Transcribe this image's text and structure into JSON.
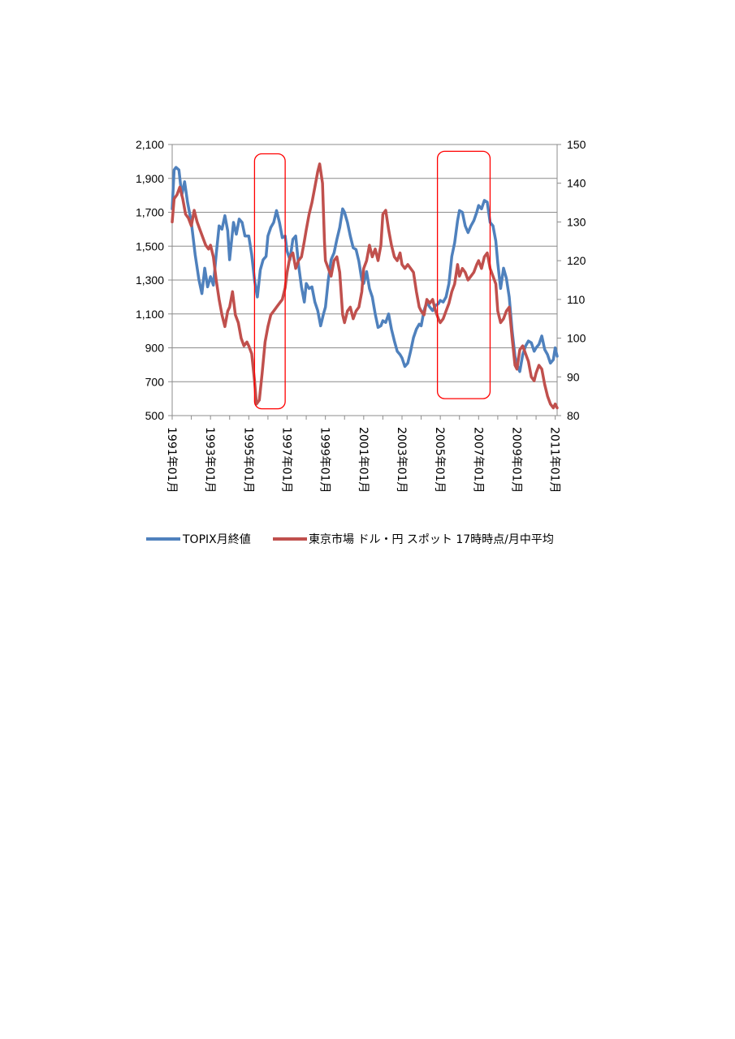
{
  "chart_data": {
    "type": "line",
    "title": "",
    "xlabel": "",
    "x_tick_labels": [
      "1991年01月",
      "1993年01月",
      "1995年01月",
      "1997年01月",
      "1999年01月",
      "2001年01月",
      "2003年01月",
      "2005年01月",
      "2007年01月",
      "2009年01月",
      "2011年01月"
    ],
    "x_range": [
      1991.0,
      2011.1
    ],
    "y_left": {
      "range": [
        500,
        2100
      ],
      "ticks": [
        500,
        700,
        900,
        1100,
        1300,
        1500,
        1700,
        1900,
        2100
      ],
      "tick_labels": [
        "500",
        "700",
        "900",
        "1,100",
        "1,300",
        "1,500",
        "1,700",
        "1,900",
        "2,100"
      ]
    },
    "y_right": {
      "range": [
        80,
        150
      ],
      "ticks": [
        80,
        90,
        100,
        110,
        120,
        130,
        140,
        150
      ],
      "tick_labels": [
        "80",
        "90",
        "100",
        "110",
        "120",
        "130",
        "140",
        "150"
      ]
    },
    "grid": "horizontal",
    "legend_position": "bottom",
    "series": [
      {
        "name": "TOPIX月終値",
        "axis": "left",
        "color": "#4f81bd",
        "points": [
          [
            1991.0,
            1720
          ],
          [
            1991.1,
            1950
          ],
          [
            1991.2,
            1965
          ],
          [
            1991.35,
            1950
          ],
          [
            1991.5,
            1800
          ],
          [
            1991.65,
            1880
          ],
          [
            1991.8,
            1760
          ],
          [
            1992.0,
            1640
          ],
          [
            1992.2,
            1450
          ],
          [
            1992.4,
            1300
          ],
          [
            1992.55,
            1220
          ],
          [
            1992.7,
            1370
          ],
          [
            1992.85,
            1260
          ],
          [
            1993.0,
            1320
          ],
          [
            1993.15,
            1270
          ],
          [
            1993.3,
            1450
          ],
          [
            1993.45,
            1620
          ],
          [
            1993.6,
            1600
          ],
          [
            1993.75,
            1680
          ],
          [
            1993.9,
            1590
          ],
          [
            1994.0,
            1420
          ],
          [
            1994.2,
            1640
          ],
          [
            1994.35,
            1570
          ],
          [
            1994.5,
            1660
          ],
          [
            1994.65,
            1640
          ],
          [
            1994.8,
            1560
          ],
          [
            1995.0,
            1560
          ],
          [
            1995.15,
            1450
          ],
          [
            1995.3,
            1300
          ],
          [
            1995.45,
            1200
          ],
          [
            1995.6,
            1360
          ],
          [
            1995.75,
            1420
          ],
          [
            1995.9,
            1440
          ],
          [
            1996.0,
            1560
          ],
          [
            1996.15,
            1610
          ],
          [
            1996.3,
            1640
          ],
          [
            1996.45,
            1710
          ],
          [
            1996.6,
            1640
          ],
          [
            1996.75,
            1550
          ],
          [
            1996.9,
            1560
          ],
          [
            1997.0,
            1470
          ],
          [
            1997.15,
            1420
          ],
          [
            1997.3,
            1540
          ],
          [
            1997.45,
            1560
          ],
          [
            1997.6,
            1390
          ],
          [
            1997.75,
            1260
          ],
          [
            1997.9,
            1170
          ],
          [
            1998.0,
            1280
          ],
          [
            1998.15,
            1250
          ],
          [
            1998.3,
            1260
          ],
          [
            1998.45,
            1170
          ],
          [
            1998.6,
            1120
          ],
          [
            1998.75,
            1030
          ],
          [
            1998.9,
            1100
          ],
          [
            1999.0,
            1140
          ],
          [
            1999.15,
            1300
          ],
          [
            1999.3,
            1420
          ],
          [
            1999.45,
            1460
          ],
          [
            1999.6,
            1540
          ],
          [
            1999.75,
            1610
          ],
          [
            1999.9,
            1720
          ],
          [
            2000.0,
            1700
          ],
          [
            2000.15,
            1640
          ],
          [
            2000.3,
            1560
          ],
          [
            2000.45,
            1490
          ],
          [
            2000.6,
            1480
          ],
          [
            2000.75,
            1410
          ],
          [
            2000.9,
            1300
          ],
          [
            2001.0,
            1280
          ],
          [
            2001.15,
            1350
          ],
          [
            2001.3,
            1250
          ],
          [
            2001.45,
            1200
          ],
          [
            2001.6,
            1100
          ],
          [
            2001.75,
            1020
          ],
          [
            2001.9,
            1030
          ],
          [
            2002.0,
            1060
          ],
          [
            2002.15,
            1050
          ],
          [
            2002.3,
            1100
          ],
          [
            2002.45,
            1010
          ],
          [
            2002.6,
            940
          ],
          [
            2002.75,
            880
          ],
          [
            2002.9,
            860
          ],
          [
            2003.0,
            840
          ],
          [
            2003.15,
            790
          ],
          [
            2003.3,
            810
          ],
          [
            2003.45,
            880
          ],
          [
            2003.6,
            960
          ],
          [
            2003.75,
            1010
          ],
          [
            2003.9,
            1040
          ],
          [
            2004.0,
            1030
          ],
          [
            2004.15,
            1120
          ],
          [
            2004.3,
            1170
          ],
          [
            2004.45,
            1140
          ],
          [
            2004.6,
            1120
          ],
          [
            2004.75,
            1150
          ],
          [
            2004.9,
            1160
          ],
          [
            2005.0,
            1180
          ],
          [
            2005.15,
            1170
          ],
          [
            2005.3,
            1200
          ],
          [
            2005.45,
            1280
          ],
          [
            2005.6,
            1440
          ],
          [
            2005.75,
            1520
          ],
          [
            2005.9,
            1650
          ],
          [
            2006.0,
            1710
          ],
          [
            2006.15,
            1700
          ],
          [
            2006.3,
            1620
          ],
          [
            2006.45,
            1580
          ],
          [
            2006.6,
            1620
          ],
          [
            2006.75,
            1650
          ],
          [
            2006.9,
            1700
          ],
          [
            2007.0,
            1740
          ],
          [
            2007.15,
            1720
          ],
          [
            2007.3,
            1770
          ],
          [
            2007.45,
            1760
          ],
          [
            2007.6,
            1640
          ],
          [
            2007.75,
            1620
          ],
          [
            2007.9,
            1530
          ],
          [
            2008.0,
            1400
          ],
          [
            2008.15,
            1250
          ],
          [
            2008.3,
            1370
          ],
          [
            2008.45,
            1310
          ],
          [
            2008.6,
            1200
          ],
          [
            2008.75,
            1000
          ],
          [
            2008.9,
            850
          ],
          [
            2009.0,
            800
          ],
          [
            2009.15,
            760
          ],
          [
            2009.3,
            860
          ],
          [
            2009.45,
            910
          ],
          [
            2009.6,
            940
          ],
          [
            2009.75,
            930
          ],
          [
            2009.9,
            880
          ],
          [
            2010.0,
            900
          ],
          [
            2010.15,
            920
          ],
          [
            2010.3,
            970
          ],
          [
            2010.45,
            890
          ],
          [
            2010.6,
            860
          ],
          [
            2010.75,
            810
          ],
          [
            2010.9,
            830
          ],
          [
            2011.0,
            900
          ],
          [
            2011.1,
            850
          ]
        ]
      },
      {
        "name": "東京市場 ドル・円 スポット 17時時点/月中平均",
        "axis": "right",
        "color": "#c0504d",
        "points": [
          [
            1991.0,
            130
          ],
          [
            1991.1,
            136
          ],
          [
            1991.25,
            137
          ],
          [
            1991.4,
            139
          ],
          [
            1991.55,
            136
          ],
          [
            1991.7,
            132
          ],
          [
            1991.85,
            131
          ],
          [
            1992.0,
            129
          ],
          [
            1992.15,
            133
          ],
          [
            1992.3,
            130
          ],
          [
            1992.45,
            128
          ],
          [
            1992.6,
            126
          ],
          [
            1992.75,
            124
          ],
          [
            1992.9,
            123
          ],
          [
            1993.0,
            124
          ],
          [
            1993.15,
            121
          ],
          [
            1993.3,
            115
          ],
          [
            1993.45,
            110
          ],
          [
            1993.6,
            106
          ],
          [
            1993.75,
            103
          ],
          [
            1993.9,
            107
          ],
          [
            1994.0,
            108
          ],
          [
            1994.15,
            112
          ],
          [
            1994.3,
            106
          ],
          [
            1994.45,
            104
          ],
          [
            1994.6,
            100
          ],
          [
            1994.75,
            98
          ],
          [
            1994.9,
            99
          ],
          [
            1995.0,
            98
          ],
          [
            1995.15,
            96
          ],
          [
            1995.3,
            89
          ],
          [
            1995.4,
            83
          ],
          [
            1995.55,
            84
          ],
          [
            1995.7,
            91
          ],
          [
            1995.85,
            99
          ],
          [
            1996.0,
            103
          ],
          [
            1996.15,
            106
          ],
          [
            1996.3,
            107
          ],
          [
            1996.45,
            108
          ],
          [
            1996.6,
            109
          ],
          [
            1996.75,
            110
          ],
          [
            1996.9,
            113
          ],
          [
            1997.0,
            117
          ],
          [
            1997.15,
            121
          ],
          [
            1997.3,
            122
          ],
          [
            1997.45,
            118
          ],
          [
            1997.6,
            120
          ],
          [
            1997.75,
            121
          ],
          [
            1997.9,
            125
          ],
          [
            1998.0,
            128
          ],
          [
            1998.15,
            132
          ],
          [
            1998.3,
            135
          ],
          [
            1998.45,
            139
          ],
          [
            1998.6,
            143
          ],
          [
            1998.7,
            145
          ],
          [
            1998.85,
            140
          ],
          [
            1998.95,
            125
          ],
          [
            1999.0,
            120
          ],
          [
            1999.15,
            118
          ],
          [
            1999.3,
            116
          ],
          [
            1999.45,
            120
          ],
          [
            1999.6,
            121
          ],
          [
            1999.75,
            117
          ],
          [
            1999.9,
            106
          ],
          [
            2000.0,
            104
          ],
          [
            2000.15,
            107
          ],
          [
            2000.3,
            108
          ],
          [
            2000.45,
            105
          ],
          [
            2000.6,
            107
          ],
          [
            2000.75,
            108
          ],
          [
            2000.9,
            112
          ],
          [
            2001.0,
            118
          ],
          [
            2001.15,
            120
          ],
          [
            2001.3,
            124
          ],
          [
            2001.45,
            121
          ],
          [
            2001.6,
            123
          ],
          [
            2001.75,
            120
          ],
          [
            2001.9,
            124
          ],
          [
            2002.0,
            132
          ],
          [
            2002.15,
            133
          ],
          [
            2002.3,
            128
          ],
          [
            2002.45,
            124
          ],
          [
            2002.6,
            121
          ],
          [
            2002.75,
            120
          ],
          [
            2002.9,
            122
          ],
          [
            2003.0,
            119
          ],
          [
            2003.15,
            118
          ],
          [
            2003.3,
            119
          ],
          [
            2003.45,
            118
          ],
          [
            2003.6,
            117
          ],
          [
            2003.75,
            112
          ],
          [
            2003.9,
            108
          ],
          [
            2004.0,
            107
          ],
          [
            2004.15,
            106
          ],
          [
            2004.3,
            110
          ],
          [
            2004.45,
            109
          ],
          [
            2004.6,
            110
          ],
          [
            2004.75,
            107
          ],
          [
            2004.9,
            105
          ],
          [
            2005.0,
            104
          ],
          [
            2005.15,
            105
          ],
          [
            2005.3,
            107
          ],
          [
            2005.45,
            109
          ],
          [
            2005.6,
            112
          ],
          [
            2005.75,
            114
          ],
          [
            2005.9,
            119
          ],
          [
            2006.0,
            116
          ],
          [
            2006.15,
            118
          ],
          [
            2006.3,
            117
          ],
          [
            2006.45,
            115
          ],
          [
            2006.6,
            116
          ],
          [
            2006.75,
            117
          ],
          [
            2006.9,
            119
          ],
          [
            2007.0,
            120
          ],
          [
            2007.15,
            118
          ],
          [
            2007.3,
            121
          ],
          [
            2007.45,
            122
          ],
          [
            2007.6,
            118
          ],
          [
            2007.75,
            116
          ],
          [
            2007.9,
            114
          ],
          [
            2008.0,
            107
          ],
          [
            2008.15,
            104
          ],
          [
            2008.3,
            105
          ],
          [
            2008.45,
            107
          ],
          [
            2008.6,
            108
          ],
          [
            2008.75,
            100
          ],
          [
            2008.9,
            93
          ],
          [
            2009.0,
            92
          ],
          [
            2009.15,
            97
          ],
          [
            2009.3,
            98
          ],
          [
            2009.45,
            96
          ],
          [
            2009.6,
            94
          ],
          [
            2009.75,
            90
          ],
          [
            2009.9,
            89
          ],
          [
            2010.0,
            91
          ],
          [
            2010.15,
            93
          ],
          [
            2010.3,
            92
          ],
          [
            2010.45,
            88
          ],
          [
            2010.6,
            85
          ],
          [
            2010.75,
            83
          ],
          [
            2010.9,
            82
          ],
          [
            2011.0,
            83
          ],
          [
            2011.1,
            82
          ]
        ]
      }
    ],
    "annotations": [
      {
        "type": "rounded-rectangle",
        "color": "#ff0000",
        "x": [
          1995.3,
          1996.9
        ],
        "y_left": [
          540,
          2045
        ]
      },
      {
        "type": "rounded-rectangle",
        "color": "#ff0000",
        "x": [
          2004.85,
          2007.6
        ],
        "y_left": [
          600,
          2060
        ]
      }
    ]
  }
}
